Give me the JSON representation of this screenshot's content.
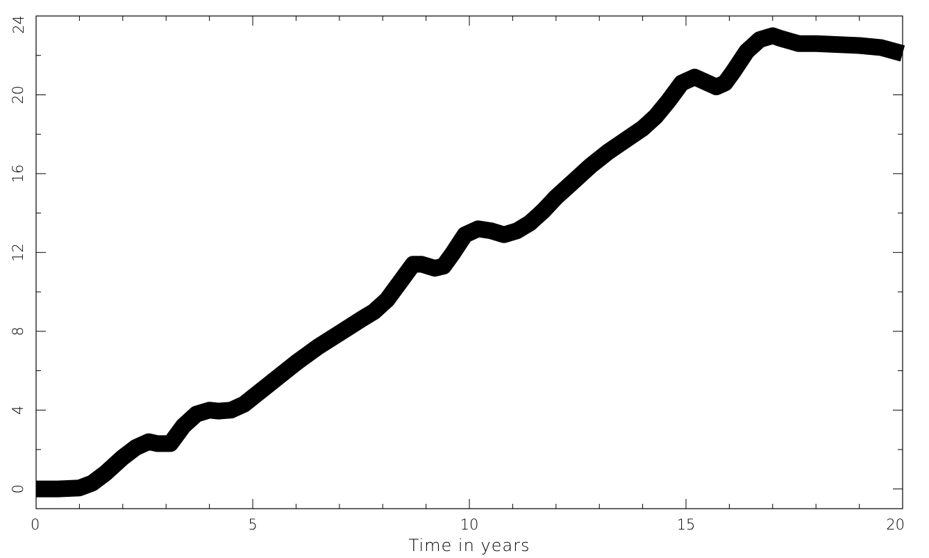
{
  "chart_data": {
    "type": "line",
    "title": "",
    "xlabel": "Time in years",
    "ylabel": "",
    "xlim": [
      0,
      20
    ],
    "ylim": [
      -1,
      24
    ],
    "x_ticks": [
      0,
      5,
      10,
      15,
      20
    ],
    "x_tick_labels": [
      "0",
      "5",
      "10",
      "15",
      "20"
    ],
    "y_ticks": [
      0,
      4,
      8,
      12,
      16,
      20,
      24
    ],
    "y_tick_labels": [
      "0",
      "4",
      "8",
      "12",
      "16",
      "20",
      "24"
    ],
    "grid": false,
    "line_color": "#000000",
    "series": [
      {
        "x": [
          0,
          0.5,
          1.0,
          1.3,
          1.6,
          2.0,
          2.3,
          2.6,
          2.8,
          3.1,
          3.4,
          3.7,
          4.0,
          4.2,
          4.5,
          4.8,
          5.2,
          5.6,
          6.0,
          6.5,
          7.0,
          7.5,
          7.8,
          8.1,
          8.4,
          8.7,
          8.9,
          9.2,
          9.4,
          9.6,
          9.9,
          10.2,
          10.5,
          10.8,
          11.1,
          11.4,
          11.7,
          12.0,
          12.4,
          12.8,
          13.2,
          13.6,
          14.0,
          14.3,
          14.6,
          14.9,
          15.2,
          15.4,
          15.7,
          15.9,
          16.1,
          16.4,
          16.7,
          17.0,
          17.2,
          17.6,
          18.0,
          18.5,
          19.0,
          19.5,
          20.0
        ],
        "y": [
          0,
          0,
          0.05,
          0.3,
          0.8,
          1.6,
          2.1,
          2.4,
          2.3,
          2.3,
          3.2,
          3.8,
          4.0,
          3.95,
          4.0,
          4.3,
          5.0,
          5.7,
          6.4,
          7.2,
          7.9,
          8.6,
          9.0,
          9.6,
          10.5,
          11.4,
          11.4,
          11.2,
          11.3,
          11.9,
          12.9,
          13.2,
          13.1,
          12.9,
          13.1,
          13.5,
          14.1,
          14.8,
          15.6,
          16.4,
          17.1,
          17.7,
          18.3,
          18.9,
          19.7,
          20.6,
          20.9,
          20.7,
          20.4,
          20.6,
          21.2,
          22.2,
          22.8,
          23.0,
          22.85,
          22.6,
          22.6,
          22.55,
          22.5,
          22.4,
          22.1
        ]
      }
    ]
  }
}
